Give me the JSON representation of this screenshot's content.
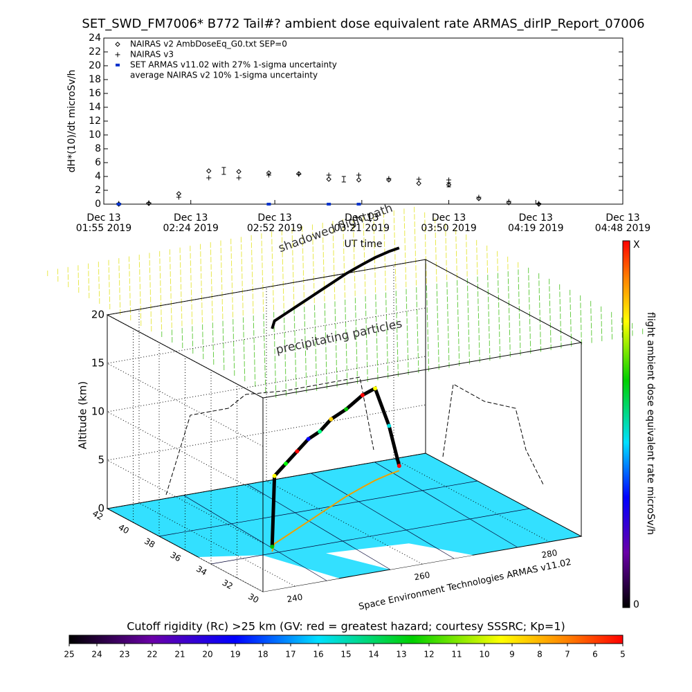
{
  "chart_data": [
    {
      "type": "scatter",
      "title": "SET_SWD_FM7006* B772 Tail#? ambient dose equivalent rate ARMAS_dirIP_Report_07006",
      "ylabel": "dH*(10)/dt microSv/h",
      "xlabel": "UT time",
      "xlim": [
        "2019-12-13T01:55",
        "2019-12-13T04:48"
      ],
      "xticks": [
        {
          "value": "2019-12-13T01:55",
          "label": [
            "Dec 13",
            "01:55 2019"
          ]
        },
        {
          "value": "2019-12-13T02:24",
          "label": [
            "Dec 13",
            "02:24 2019"
          ]
        },
        {
          "value": "2019-12-13T02:52",
          "label": [
            "Dec 13",
            "02:52 2019"
          ]
        },
        {
          "value": "2019-12-13T03:21",
          "label": [
            "Dec 13",
            "03:21 2019"
          ]
        },
        {
          "value": "2019-12-13T03:50",
          "label": [
            "Dec 13",
            "03:50 2019"
          ]
        },
        {
          "value": "2019-12-13T04:19",
          "label": [
            "Dec 13",
            "04:19 2019"
          ]
        },
        {
          "value": "2019-12-13T04:48",
          "label": [
            "Dec 13",
            "04:48 2019"
          ]
        }
      ],
      "ylim": [
        0,
        24
      ],
      "yticks": [
        0,
        2,
        4,
        6,
        8,
        10,
        12,
        14,
        16,
        18,
        20,
        22,
        24
      ],
      "legend": "upper left",
      "x": [
        "2019-12-13T02:00",
        "2019-12-13T02:10",
        "2019-12-13T02:20",
        "2019-12-13T02:30",
        "2019-12-13T02:40",
        "2019-12-13T02:50",
        "2019-12-13T03:00",
        "2019-12-13T03:10",
        "2019-12-13T03:20",
        "2019-12-13T03:30",
        "2019-12-13T03:40",
        "2019-12-13T03:50",
        "2019-12-13T04:00",
        "2019-12-13T04:10",
        "2019-12-13T04:20"
      ],
      "series": [
        {
          "name": "NAIRAS v2 AmbDoseEq_G0.txt SEP=0",
          "marker": "diamond",
          "color": "#000000",
          "values": [
            0,
            0.1,
            1.5,
            4.8,
            4.7,
            4.5,
            4.4,
            3.6,
            3.5,
            3.5,
            3.0,
            2.8,
            0.8,
            0.2,
            0
          ]
        },
        {
          "name": "NAIRAS v3",
          "marker": "plus",
          "color": "#000000",
          "values": [
            0.1,
            0.2,
            1.0,
            3.8,
            3.8,
            4.2,
            4.3,
            4.2,
            4.2,
            3.7,
            3.6,
            3.5,
            1.0,
            0.4,
            0.1
          ]
        },
        {
          "name": "SET ARMAS v11.02 with 27% 1-sigma uncertainty",
          "marker": "square",
          "color": "#0033cc",
          "values": [
            0,
            null,
            null,
            null,
            null,
            0,
            null,
            0,
            0,
            null,
            null,
            null,
            null,
            null,
            null
          ]
        },
        {
          "name": "average NAIRAS v2 10% 1-sigma uncertainty",
          "marker": "errorbar",
          "color": "#000000",
          "x": [
            "2019-12-13T02:35",
            "2019-12-13T03:15",
            "2019-12-13T03:50"
          ],
          "values": [
            4.8,
            3.6,
            2.8
          ],
          "errors": [
            0.5,
            0.4,
            0.3
          ]
        }
      ]
    },
    {
      "type": "scatter3d",
      "zlabel": "Altitude (km)",
      "zlim": [
        0,
        20
      ],
      "zticks": [
        0,
        5,
        10,
        15,
        20
      ],
      "ylim": [
        30,
        42
      ],
      "yticks": [
        30,
        32,
        34,
        36,
        38,
        40,
        42
      ],
      "xlim": [
        235,
        285
      ],
      "xticks": [
        240,
        260,
        280
      ],
      "annotations": [
        "shadowed flightpath",
        "precipitating particles",
        "Space Environment Technologies ARMAS v11.02"
      ],
      "path": {
        "x": [
          245,
          247,
          250,
          253,
          256,
          259,
          262,
          266,
          270,
          273,
          276,
          278
        ],
        "y": [
          34.2,
          35.0,
          35.6,
          36.2,
          36.8,
          37.4,
          38.0,
          38.8,
          39.5,
          40.0,
          40.4,
          40.6
        ],
        "z": [
          0.5,
          7,
          7.5,
          8,
          8.5,
          8.5,
          9,
          9,
          9.5,
          9.5,
          5,
          0.5
        ],
        "colors": [
          "#00c000",
          "#ffff00",
          "#00ff00",
          "#ff0000",
          "#0000ff",
          "#00ff80",
          "#ffd000",
          "#00c000",
          "#ff0000",
          "#ffff00",
          "#00e0e0",
          "#ff0000"
        ]
      },
      "colorbar": {
        "label": "flight ambient dose equivalent rate microSv/h",
        "tick_labels": [
          "X",
          "0"
        ]
      },
      "cutoff_colorbar": {
        "title": "Cutoff rigidity (Rc) >25 km (GV: red = greatest hazard; courtesy SSSRC; Kp=1)",
        "lim": [
          25,
          5
        ],
        "ticks": [
          25,
          24,
          23,
          22,
          21,
          20,
          19,
          18,
          17,
          16,
          15,
          14,
          13,
          12,
          11,
          10,
          9,
          8,
          7,
          6,
          5
        ]
      }
    }
  ]
}
